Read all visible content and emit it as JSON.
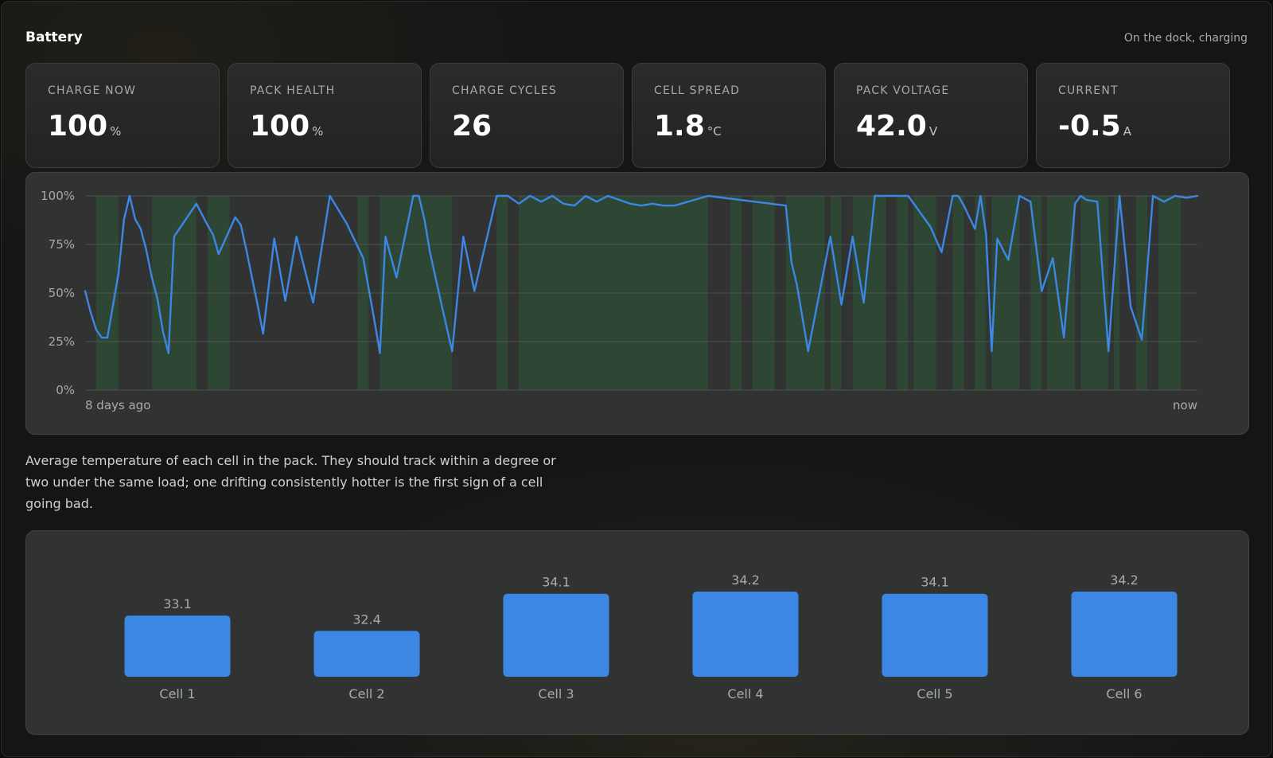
{
  "header": {
    "title": "Battery",
    "status": "On the dock, charging"
  },
  "stats": [
    {
      "label": "CHARGE NOW",
      "value": "100",
      "unit": "%"
    },
    {
      "label": "PACK HEALTH",
      "value": "100",
      "unit": "%"
    },
    {
      "label": "CHARGE CYCLES",
      "value": "26",
      "unit": ""
    },
    {
      "label": "CELL SPREAD",
      "value": "1.8",
      "unit": "°C"
    },
    {
      "label": "PACK VOLTAGE",
      "value": "42.0",
      "unit": "V"
    },
    {
      "label": "CURRENT",
      "value": "-0.5",
      "unit": "A"
    }
  ],
  "colors": {
    "accent": "#3b87e3",
    "charging_band": "#2e4a35",
    "panel": "#313333"
  },
  "charge_chart": {
    "chart_data": {
      "type": "line",
      "title": "",
      "xlabel": "",
      "ylabel": "",
      "x_start_label": "8 days ago",
      "x_end_label": "now",
      "xlim": [
        0,
        100
      ],
      "ylim": [
        0,
        100
      ],
      "yticks": [
        0,
        25,
        50,
        75,
        100
      ],
      "ytick_labels": [
        "0%",
        "25%",
        "50%",
        "75%",
        "100%"
      ],
      "grid": true,
      "series": [
        {
          "x": [
            0,
            0.5,
            1,
            1.5,
            2,
            3,
            3.5,
            4,
            4.5,
            5,
            5.5,
            6,
            6.5,
            7,
            7.5,
            8,
            10,
            11,
            11.5,
            12,
            13.5,
            14,
            14.5,
            15,
            15.5,
            16,
            17,
            18,
            19,
            20.5,
            22,
            23.5,
            25,
            26,
            26.5,
            27,
            28,
            29.5,
            30,
            30.5,
            31,
            32,
            33,
            34,
            35,
            37,
            38,
            39,
            40,
            41,
            42,
            43,
            44,
            45,
            46,
            47,
            48,
            49,
            50,
            51,
            52,
            53,
            56,
            63,
            63.5,
            64,
            65,
            67,
            68,
            69,
            70,
            71,
            73,
            74,
            76,
            77,
            78,
            78.5,
            79,
            80,
            80.5,
            81,
            81.5,
            82,
            83,
            84,
            85,
            86,
            87,
            88,
            89,
            89.5,
            90,
            91,
            92,
            93,
            94,
            95,
            96,
            97,
            98,
            99,
            100
          ],
          "y": [
            51,
            40,
            31,
            27,
            27,
            60,
            88,
            100,
            88,
            83,
            72,
            58,
            47,
            30,
            19,
            79,
            96,
            85,
            80,
            70,
            89,
            85,
            72,
            58,
            44,
            29,
            78,
            46,
            79,
            45,
            100,
            86,
            68,
            36,
            19,
            79,
            58,
            100,
            100,
            88,
            71,
            45,
            20,
            79,
            51,
            100,
            100,
            96,
            100,
            97,
            100,
            96,
            95,
            100,
            97,
            100,
            98,
            96,
            95,
            96,
            95,
            95,
            100,
            95,
            66,
            54,
            20,
            79,
            44,
            79,
            45,
            100,
            100,
            100,
            84,
            71,
            100,
            100,
            95,
            83,
            100,
            80,
            20,
            78,
            67,
            100,
            97,
            51,
            68,
            27,
            96,
            100,
            98,
            97,
            20,
            100,
            43,
            26,
            100,
            97,
            100,
            99,
            100
          ]
        }
      ],
      "bands_note": "",
      "charging_bands": [
        [
          1,
          3
        ],
        [
          6,
          7
        ],
        [
          7,
          10
        ],
        [
          11,
          12
        ],
        [
          12,
          13
        ],
        [
          24.5,
          25.5
        ],
        [
          26.5,
          33
        ],
        [
          37,
          38
        ],
        [
          39,
          56
        ],
        [
          58,
          59
        ],
        [
          60,
          62
        ],
        [
          63,
          66.5
        ],
        [
          67,
          68
        ],
        [
          69,
          72
        ],
        [
          73,
          74
        ],
        [
          74.5,
          76.5
        ],
        [
          78,
          79
        ],
        [
          80,
          81
        ],
        [
          81.5,
          84
        ],
        [
          85,
          86
        ],
        [
          86.5,
          89
        ],
        [
          89.5,
          92
        ],
        [
          92.5,
          93
        ],
        [
          94.5,
          95.5
        ],
        [
          96.5,
          98.5
        ]
      ]
    }
  },
  "description": "Average temperature of each cell in the pack. They should track within a degree or two under the same load; one drifting consistently hotter is the first sign of a cell going bad.",
  "cells_chart": {
    "chart_data": {
      "type": "bar",
      "title": "",
      "xlabel": "",
      "ylabel": "",
      "categories": [
        "Cell 1",
        "Cell 2",
        "Cell 3",
        "Cell 4",
        "Cell 5",
        "Cell 6"
      ],
      "values": [
        33.1,
        32.4,
        34.1,
        34.2,
        34.1,
        34.2
      ],
      "value_labels": [
        "33.1",
        "32.4",
        "34.1",
        "34.2",
        "34.1",
        "34.2"
      ],
      "ylim": [
        30.3,
        34.2
      ],
      "grid": false
    }
  }
}
